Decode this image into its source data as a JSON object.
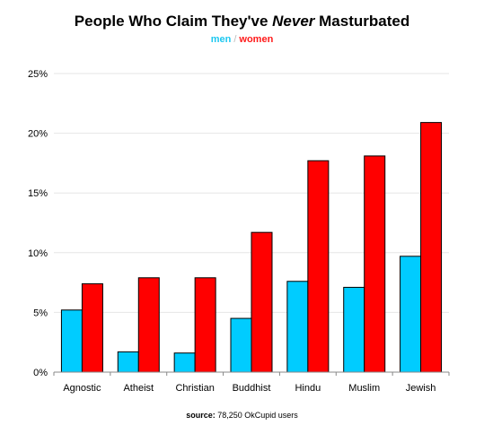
{
  "chart_data": {
    "type": "bar",
    "title": {
      "prefix": "People Who Claim They've ",
      "emphasis": "Never",
      "suffix": " Masturbated"
    },
    "categories": [
      "Agnostic",
      "Atheist",
      "Christian",
      "Buddhist",
      "Hindu",
      "Muslim",
      "Jewish"
    ],
    "series": [
      {
        "name": "men",
        "color": "#00ccff",
        "values": [
          5.2,
          1.7,
          1.6,
          4.5,
          7.6,
          7.1,
          9.7
        ]
      },
      {
        "name": "women",
        "color": "#ff0000",
        "values": [
          7.4,
          7.9,
          7.9,
          11.7,
          17.7,
          18.1,
          20.9
        ]
      }
    ],
    "legend_separator": "/",
    "ylim": [
      0,
      25
    ],
    "yticks": [
      "0%",
      "5%",
      "10%",
      "15%",
      "20%",
      "25%"
    ],
    "ytick_values": [
      0,
      5,
      10,
      15,
      20,
      25
    ],
    "grid": true,
    "legend_position": "top-center",
    "source": {
      "label": "source:",
      "text": " 78,250 OkCupid users"
    }
  }
}
